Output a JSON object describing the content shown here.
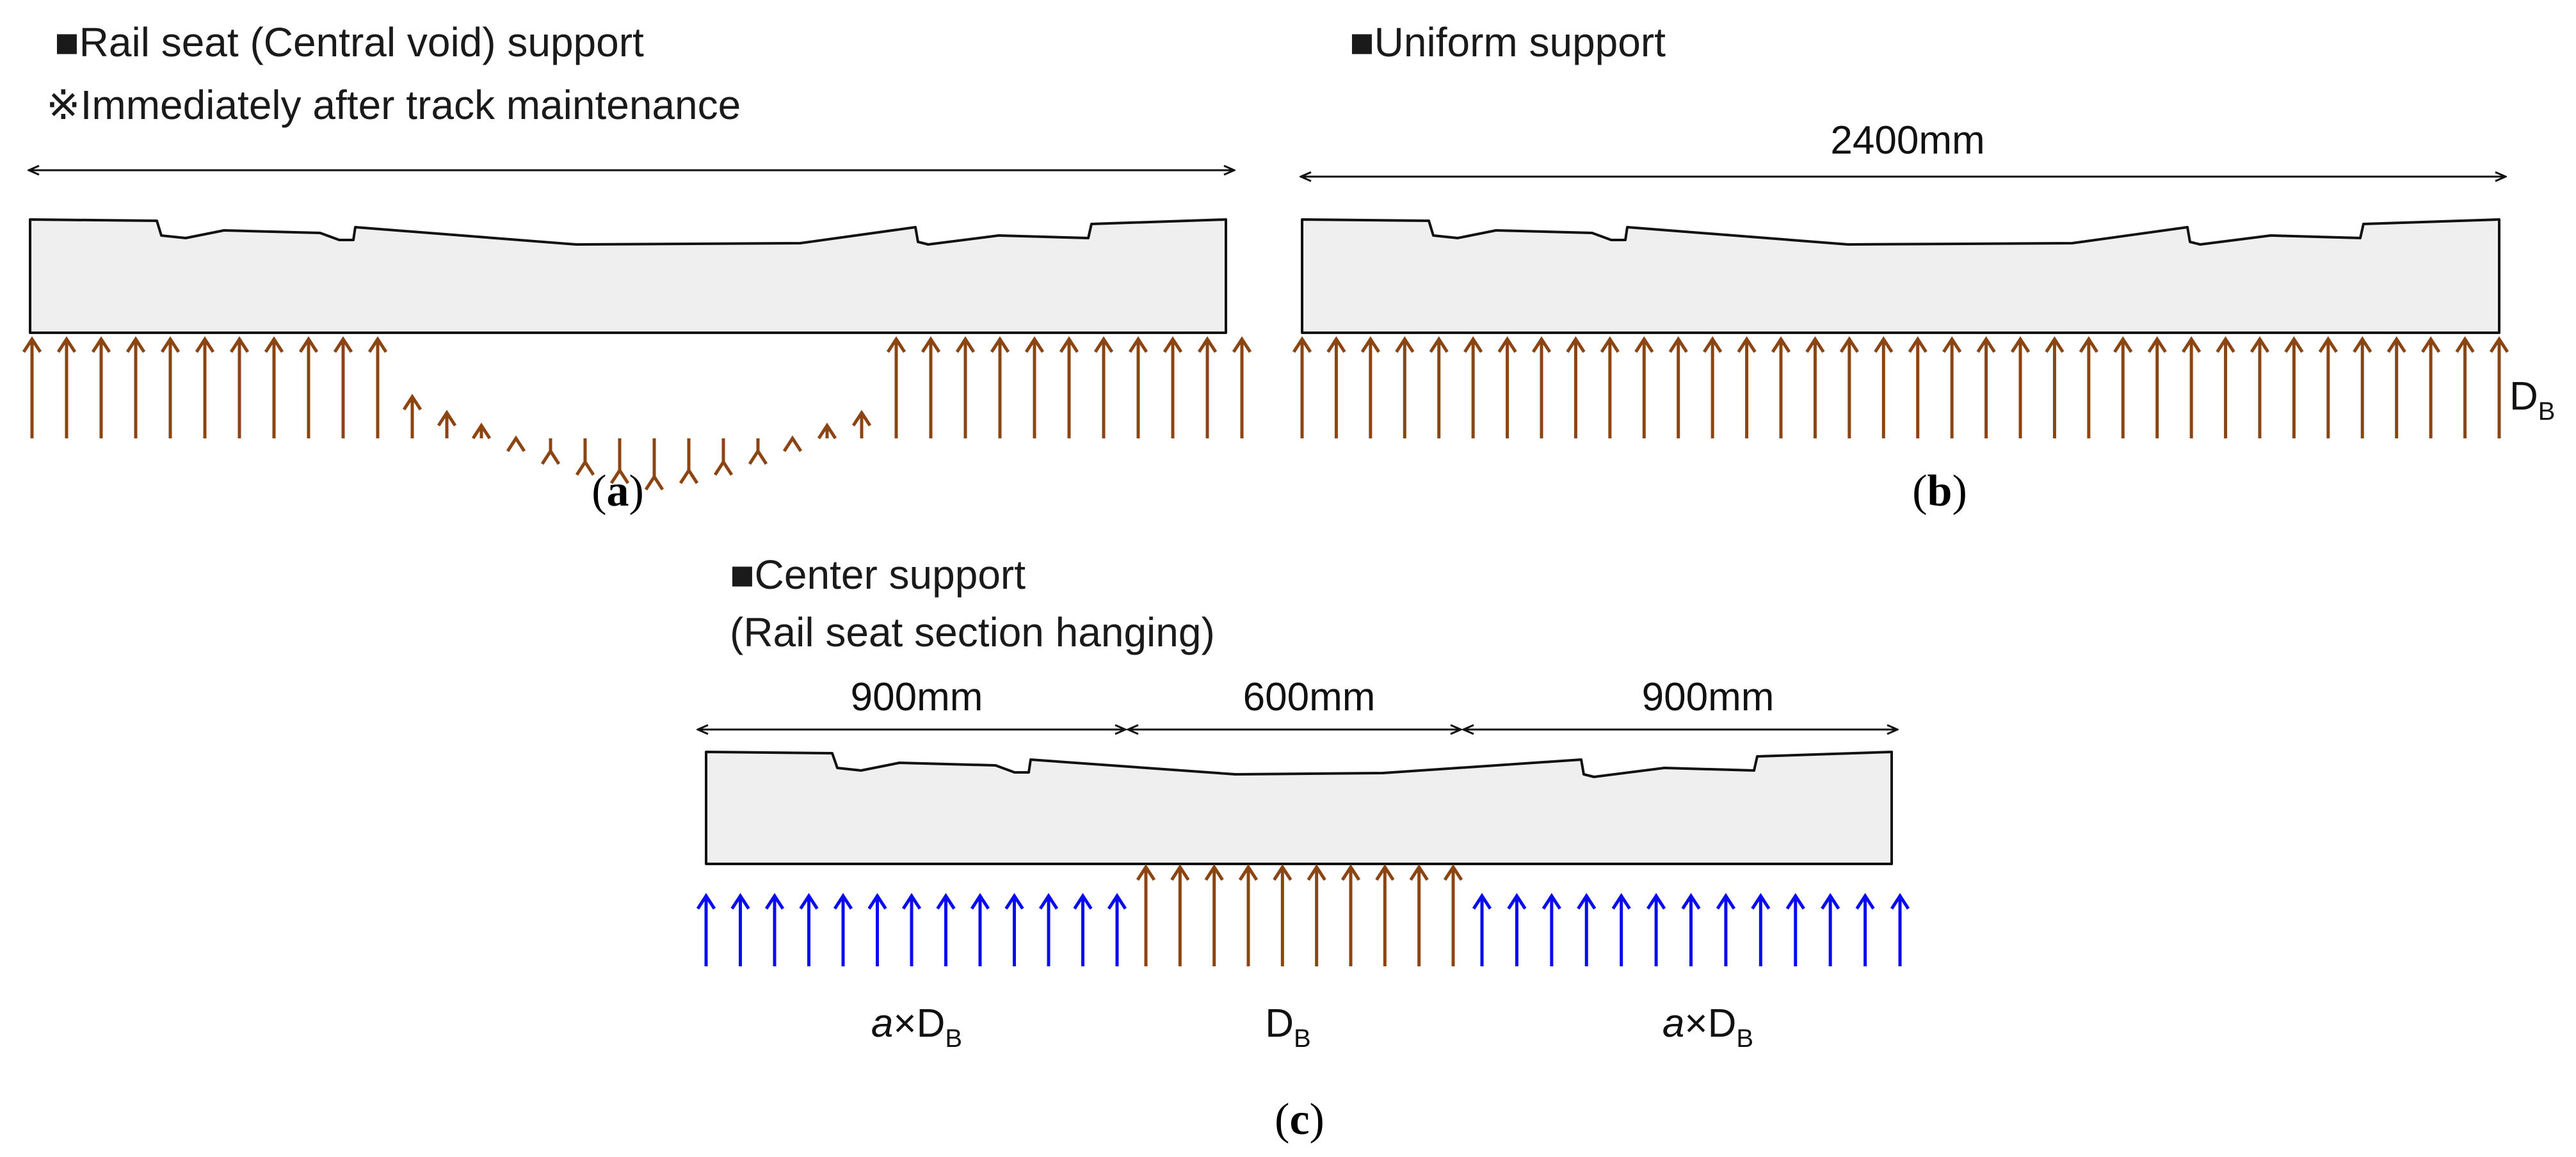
{
  "colors": {
    "brown_arrow": "#8B4513",
    "blue_arrow": "#0A0AF0",
    "sleeper_fill": "#EFEFEF",
    "outline": "#111111"
  },
  "panel_a": {
    "heading": "■Rail seat (Central void) support",
    "note": "※Immediately after track maintenance",
    "caption_open": "(",
    "caption_letter": "a",
    "caption_close": ")"
  },
  "panel_b": {
    "heading": "■Uniform support",
    "dimension": "2400mm",
    "load_label": "D",
    "load_sub": "B",
    "caption_open": "(",
    "caption_letter": "b",
    "caption_close": ")"
  },
  "panel_c": {
    "heading": "■Center support",
    "subheading": "(Rail seat section hanging)",
    "dim_left": "900mm",
    "dim_center": "600mm",
    "dim_right": "900mm",
    "label_left_factor": "a",
    "label_left_times": "×",
    "label_left_D": "D",
    "label_left_sub": "B",
    "label_center_D": "D",
    "label_center_sub": "B",
    "label_right_factor": "a",
    "label_right_times": "×",
    "label_right_D": "D",
    "label_right_sub": "B",
    "caption_open": "(",
    "caption_letter": "c",
    "caption_close": ")"
  }
}
